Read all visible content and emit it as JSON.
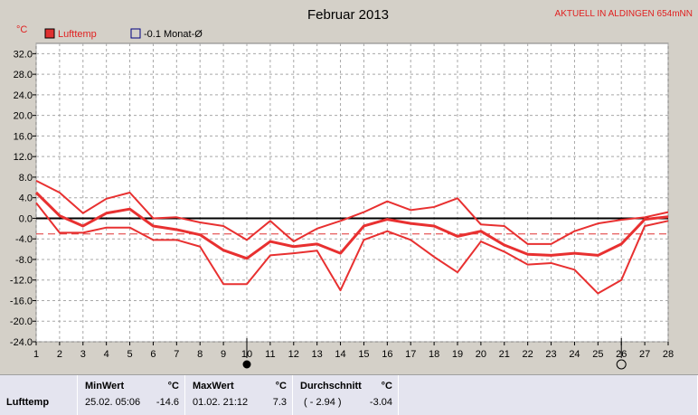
{
  "chart_data": {
    "type": "line",
    "title": "Februar 2013",
    "station_label": "AKTUELL IN ALDINGEN 654mNN",
    "ylabel": "°C",
    "ylim": [
      -24,
      34
    ],
    "yticks": [
      "32.0",
      "28.0",
      "24.0",
      "20.0",
      "16.0",
      "12.0",
      "8.0",
      "4.0",
      "0.0",
      "-4.0",
      "-8.0",
      "-12.0",
      "-16.0",
      "-20.0",
      "-24.0"
    ],
    "ytick_values": [
      32,
      28,
      24,
      20,
      16,
      12,
      8,
      4,
      0,
      -4,
      -8,
      -12,
      -16,
      -20,
      -24
    ],
    "x": [
      1,
      2,
      3,
      4,
      5,
      6,
      7,
      8,
      9,
      10,
      11,
      12,
      13,
      14,
      15,
      16,
      17,
      18,
      19,
      20,
      21,
      22,
      23,
      24,
      25,
      26,
      27,
      28
    ],
    "xlim": [
      1,
      28
    ],
    "grid": true,
    "legend": [
      {
        "label": "Lufttemp",
        "color": "#e03030",
        "filled": true
      },
      {
        "label": "-0.1 Monat-Ø",
        "color": "#000080",
        "filled": false
      }
    ],
    "series": [
      {
        "name": "max",
        "values": [
          7.3,
          5.0,
          1.0,
          3.8,
          5.0,
          0.0,
          0.2,
          -0.8,
          -1.5,
          -4.2,
          -0.5,
          -4.5,
          -2.0,
          -0.5,
          1.2,
          3.3,
          1.6,
          2.2,
          3.9,
          -1.2,
          -1.5,
          -5.0,
          -5.0,
          -2.5,
          -1.0,
          -0.3,
          0.2,
          1.2
        ]
      },
      {
        "name": "avg",
        "values": [
          5.0,
          0.5,
          -1.5,
          1.0,
          1.8,
          -1.5,
          -2.2,
          -3.2,
          -6.2,
          -7.8,
          -4.5,
          -5.5,
          -5.0,
          -6.8,
          -1.5,
          -0.2,
          -1.0,
          -1.5,
          -3.5,
          -2.5,
          -5.2,
          -7.0,
          -7.2,
          -6.8,
          -7.2,
          -5.0,
          -0.2,
          0.3
        ]
      },
      {
        "name": "min",
        "values": [
          3.0,
          -2.8,
          -2.8,
          -1.8,
          -1.8,
          -4.2,
          -4.2,
          -5.5,
          -12.8,
          -12.8,
          -7.2,
          -6.8,
          -6.3,
          -14.0,
          -4.2,
          -2.5,
          -4.2,
          -7.5,
          -10.5,
          -4.5,
          -6.5,
          -9.0,
          -8.7,
          -10.0,
          -14.6,
          -12.0,
          -1.5,
          -0.5
        ]
      }
    ],
    "reference_lines": [
      {
        "label": "-3.04",
        "value": -3.04,
        "style": "dashed",
        "color": "#e03030"
      },
      {
        "label": "0.0",
        "value": 0,
        "style": "solid",
        "color": "#000000"
      }
    ],
    "markers": [
      {
        "x": 10,
        "symbol": "filled-circle"
      },
      {
        "x": 26,
        "symbol": "open-circle"
      }
    ]
  },
  "footer": {
    "row_label": "Lufttemp",
    "min": {
      "header": "MinWert",
      "unit": "°C",
      "datetime": "25.02.  05:06",
      "value": "-14.6"
    },
    "max": {
      "header": "MaxWert",
      "unit": "°C",
      "datetime": "01.02.  21:12",
      "value": "7.3"
    },
    "avg": {
      "header": "Durchschnitt",
      "unit": "°C",
      "detail": "( - 2.94 )",
      "value": "-3.04"
    }
  }
}
